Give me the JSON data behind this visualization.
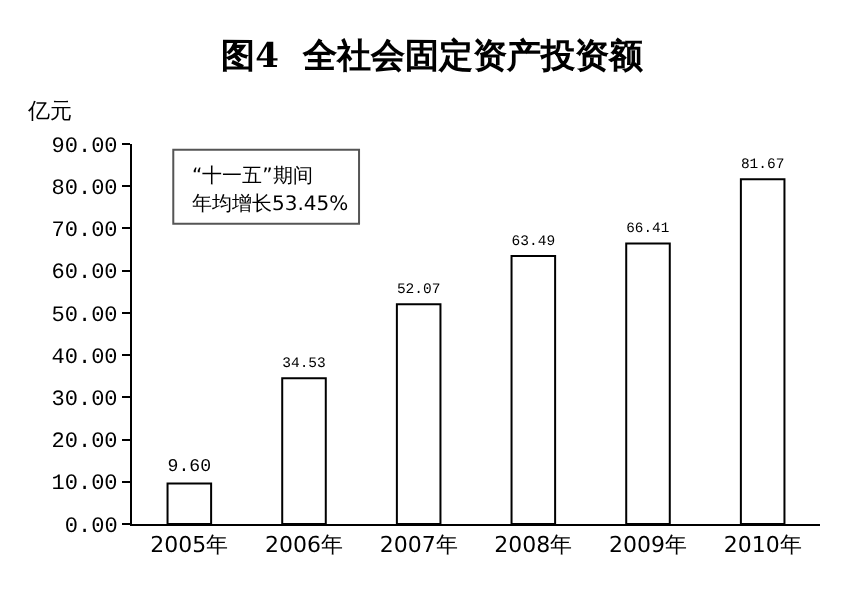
{
  "chart_data": {
    "type": "bar",
    "title": "图4  全社会固定资产投资额",
    "ylabel": "亿元",
    "categories": [
      "2005年",
      "2006年",
      "2007年",
      "2008年",
      "2009年",
      "2010年"
    ],
    "values": [
      9.6,
      34.53,
      52.07,
      63.49,
      66.41,
      81.67
    ],
    "color": "#ffffff",
    "value_labels": [
      "9.60",
      "34.53",
      "52.07",
      "63.49",
      "66.41",
      "81.67"
    ],
    "ylim": [
      0,
      90
    ],
    "yticks": [
      {
        "value": 0,
        "label": "0.00"
      },
      {
        "value": 10,
        "label": "10.00"
      },
      {
        "value": 20,
        "label": "20.00"
      },
      {
        "value": 30,
        "label": "30.00"
      },
      {
        "value": 40,
        "label": "40.00"
      },
      {
        "value": 50,
        "label": "50.00"
      },
      {
        "value": 60,
        "label": "60.00"
      },
      {
        "value": 70,
        "label": "70.00"
      },
      {
        "value": 80,
        "label": "80.00"
      },
      {
        "value": 90,
        "label": "90.00"
      }
    ],
    "annotations": [
      "“十一五”期间",
      "年均增长53.45%"
    ],
    "grid": false,
    "legend": false
  }
}
